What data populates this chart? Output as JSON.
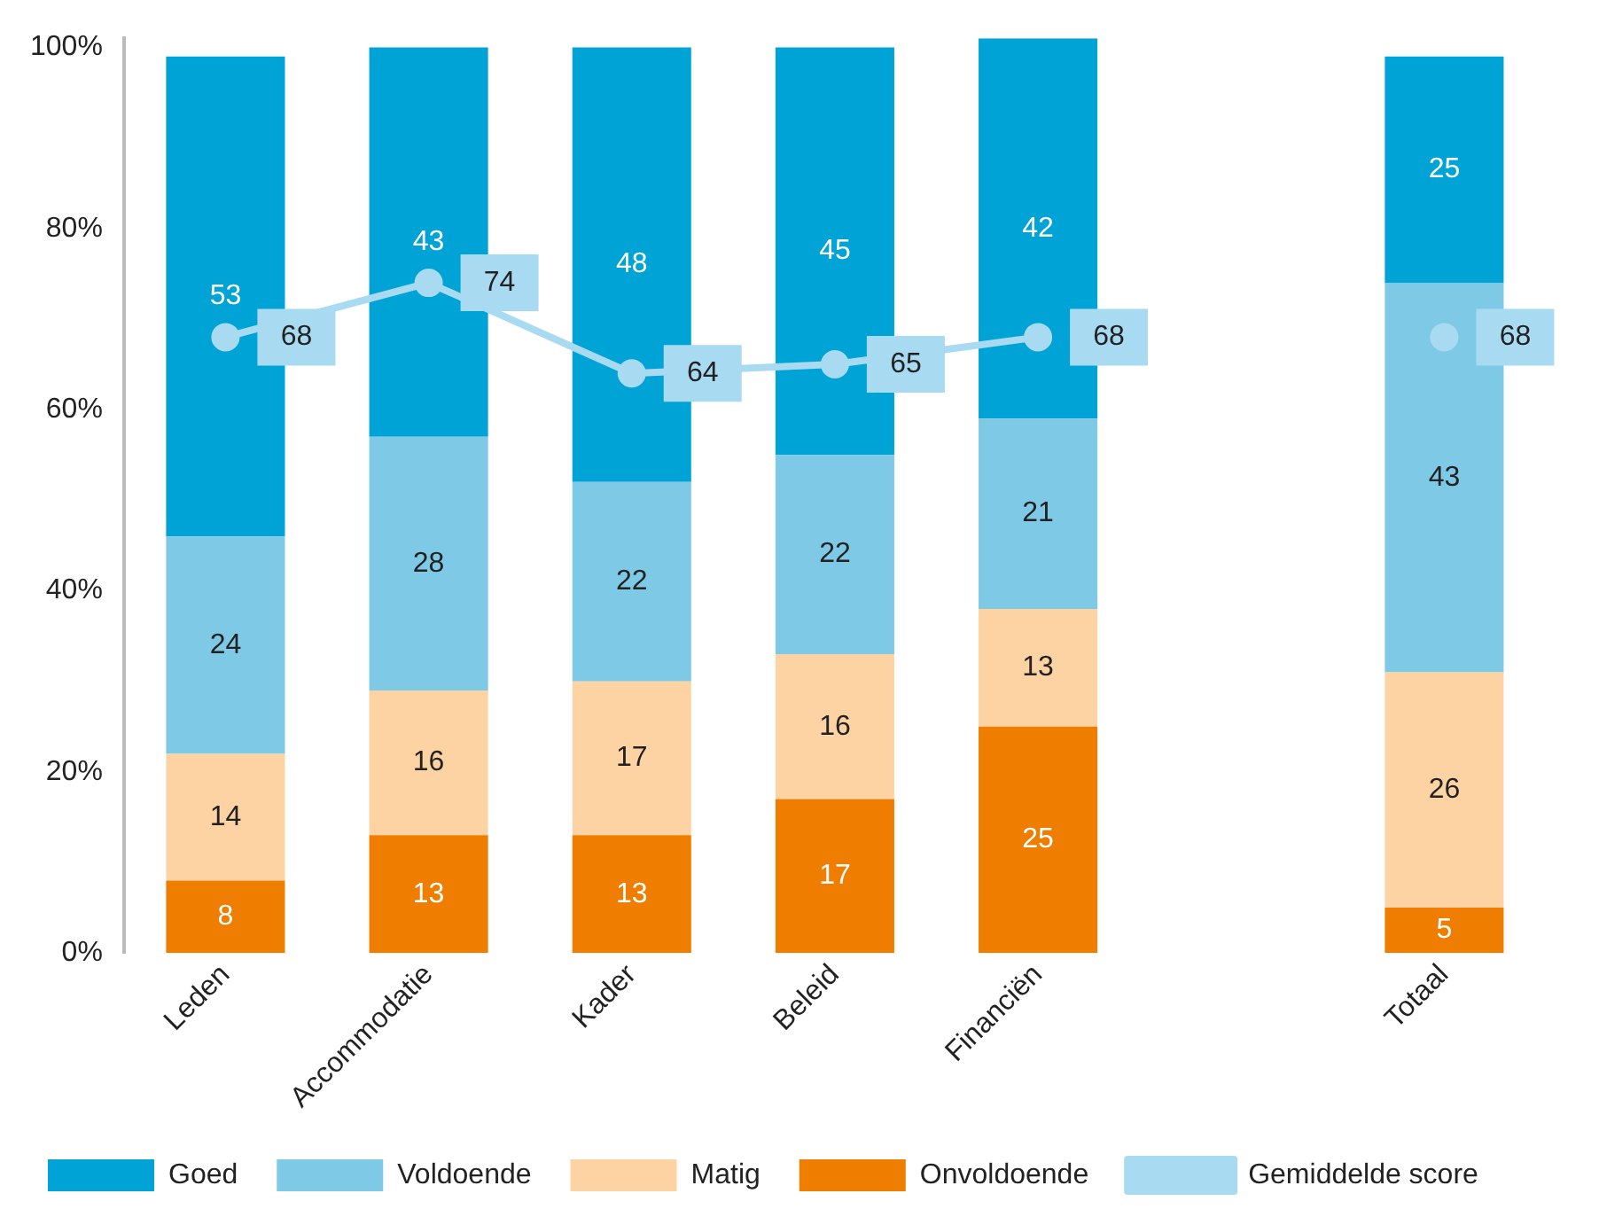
{
  "chart_data": {
    "type": "bar",
    "stacked": true,
    "categories": [
      "Leden",
      "Accommodatie",
      "Kader",
      "Beleid",
      "Financiën",
      null,
      "Totaal"
    ],
    "series": [
      {
        "name": "Onvoldoende",
        "color": "#ee7d00",
        "values": [
          8,
          13,
          13,
          17,
          25,
          null,
          5
        ]
      },
      {
        "name": "Matig",
        "color": "#fdd3a4",
        "values": [
          14,
          16,
          17,
          16,
          13,
          null,
          26
        ]
      },
      {
        "name": "Voldoende",
        "color": "#7ec9e6",
        "values": [
          24,
          28,
          22,
          22,
          21,
          null,
          43
        ]
      },
      {
        "name": "Goed",
        "color": "#00a3d5",
        "values": [
          53,
          43,
          48,
          45,
          42,
          null,
          25
        ]
      },
      {
        "name": "Gemiddelde score",
        "type": "line",
        "color": "#a8daf2",
        "marker": "circle",
        "values": [
          68,
          74,
          64,
          65,
          68,
          null,
          68
        ]
      }
    ],
    "ylim": [
      0,
      101
    ],
    "yticks": [
      {
        "value": 0,
        "label": "0%"
      },
      {
        "value": 20,
        "label": "20%"
      },
      {
        "value": 40,
        "label": "40%"
      },
      {
        "value": 60,
        "label": "60%"
      },
      {
        "value": 80,
        "label": "80%"
      },
      {
        "value": 100,
        "label": "100%"
      }
    ],
    "grid": false,
    "legend": "bottom",
    "data_labels": true
  }
}
